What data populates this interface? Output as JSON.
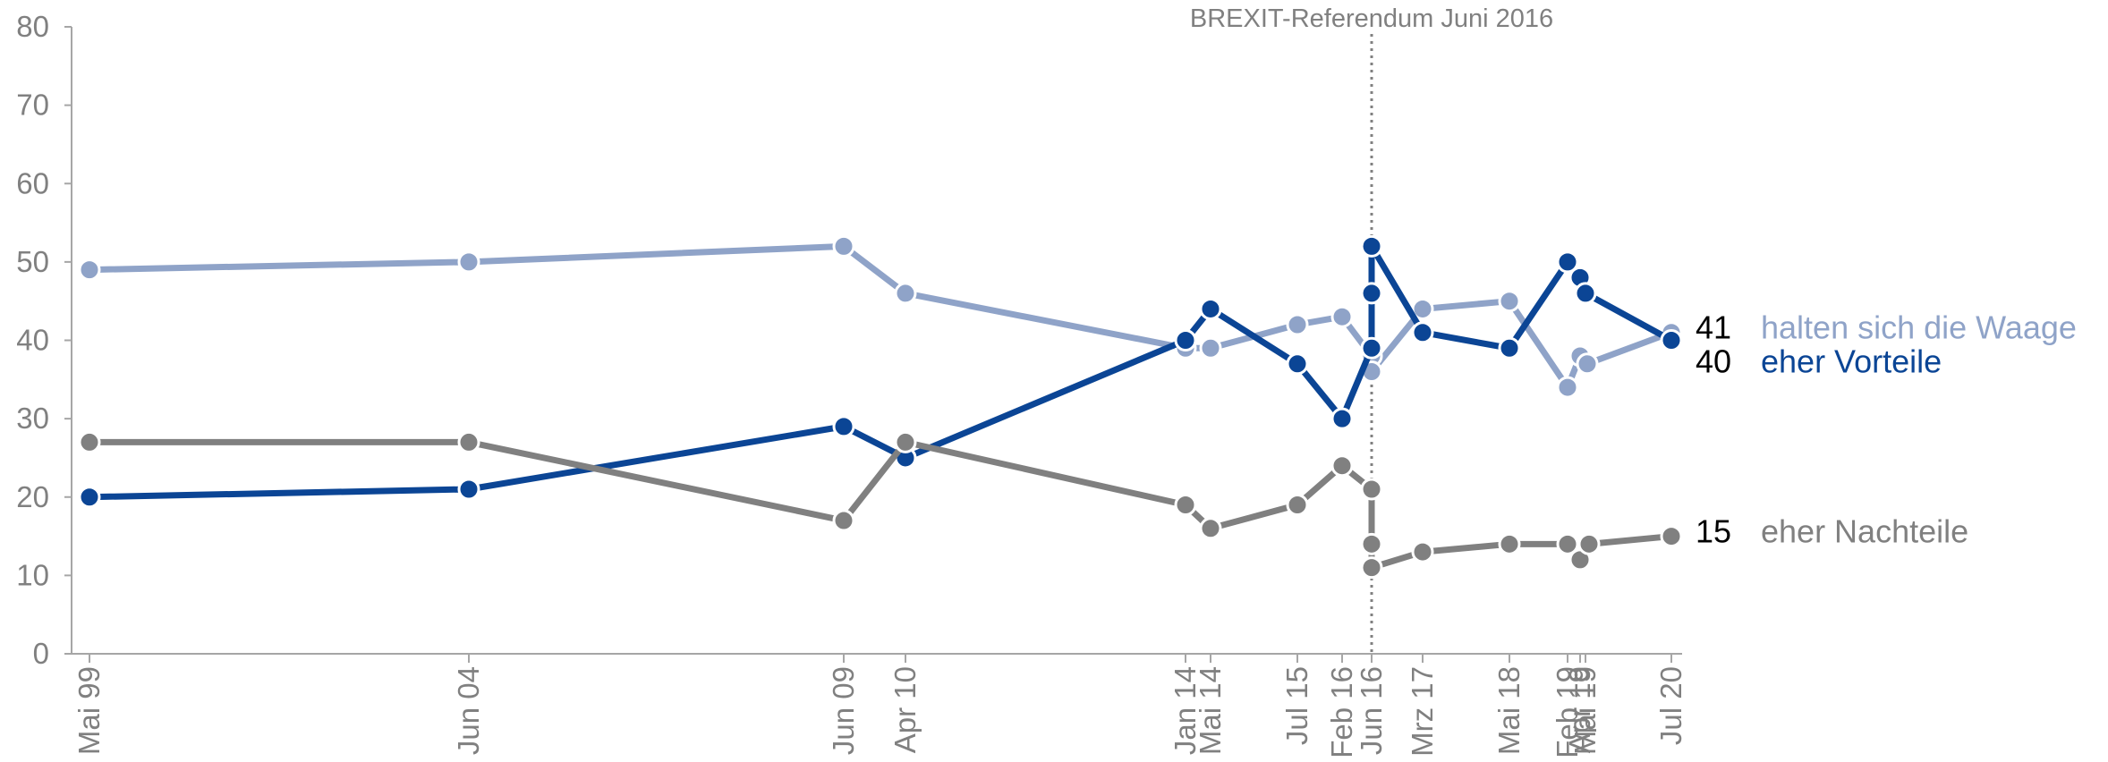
{
  "chart_data": {
    "type": "line",
    "title": "",
    "xlabel": "",
    "ylabel": "",
    "ylim": [
      0,
      80
    ],
    "yticks": [
      0,
      10,
      20,
      30,
      40,
      50,
      60,
      70,
      80
    ],
    "grid": false,
    "annotation": {
      "text": "BREXIT-Referendum Juni 2016",
      "at": "Jun 16"
    },
    "x_labels": [
      "Mai 99",
      "Jun 04",
      "Jun 09",
      "Apr 10",
      "Jan 14",
      "Mai 14",
      "Jul 15",
      "Feb 16",
      "Jun 16",
      "Mrz 17",
      "Mai 18",
      "Feb 19",
      "Apr 19",
      "Mai 19",
      "Jul 20"
    ],
    "series": [
      {
        "name": "halten sich die Waage",
        "color": "#8fa3c8",
        "end_value": "41",
        "points": [
          [
            "Mai 99",
            49
          ],
          [
            "Jun 04",
            50
          ],
          [
            "Jun 09",
            52
          ],
          [
            "Apr 10",
            46
          ],
          [
            "Jan 14",
            39
          ],
          [
            "Mai 14",
            39
          ],
          [
            "Jul 15",
            42
          ],
          [
            "Feb 16",
            43
          ],
          [
            "Jun 16",
            38
          ],
          [
            "Jun 16",
            36
          ],
          [
            "Mrz 17",
            44
          ],
          [
            "Mai 18",
            45
          ],
          [
            "Feb 19",
            34
          ],
          [
            "Apr 19",
            38
          ],
          [
            "Apr 19",
            37
          ],
          [
            "Jul 20",
            41
          ]
        ]
      },
      {
        "name": "eher Vorteile",
        "color": "#0b4595",
        "end_value": "40",
        "points": [
          [
            "Mai 99",
            20
          ],
          [
            "Jun 04",
            21
          ],
          [
            "Jun 09",
            29
          ],
          [
            "Apr 10",
            25
          ],
          [
            "Jan 14",
            40
          ],
          [
            "Mai 14",
            44
          ],
          [
            "Jul 15",
            37
          ],
          [
            "Feb 16",
            30
          ],
          [
            "Jun 16",
            39
          ],
          [
            "Jun 16",
            46
          ],
          [
            "Jun 16",
            52
          ],
          [
            "Mrz 17",
            41
          ],
          [
            "Mai 18",
            39
          ],
          [
            "Feb 19",
            50
          ],
          [
            "Apr 19",
            48
          ],
          [
            "Mai 19",
            46
          ],
          [
            "Jul 20",
            40
          ]
        ]
      },
      {
        "name": "eher Nachteile",
        "color": "#808080",
        "end_value": "15",
        "points": [
          [
            "Mai 99",
            27
          ],
          [
            "Jun 04",
            27
          ],
          [
            "Jun 09",
            17
          ],
          [
            "Apr 10",
            27
          ],
          [
            "Jan 14",
            19
          ],
          [
            "Mai 14",
            16
          ],
          [
            "Jul 15",
            19
          ],
          [
            "Feb 16",
            24
          ],
          [
            "Jun 16",
            21
          ],
          [
            "Jun 16",
            14
          ],
          [
            "Jun 16",
            11
          ],
          [
            "Mrz 17",
            13
          ],
          [
            "Mai 18",
            14
          ],
          [
            "Feb 19",
            14
          ],
          [
            "Apr 19",
            12
          ],
          [
            "Apr 19",
            14
          ],
          [
            "Jul 20",
            15
          ]
        ]
      }
    ]
  }
}
